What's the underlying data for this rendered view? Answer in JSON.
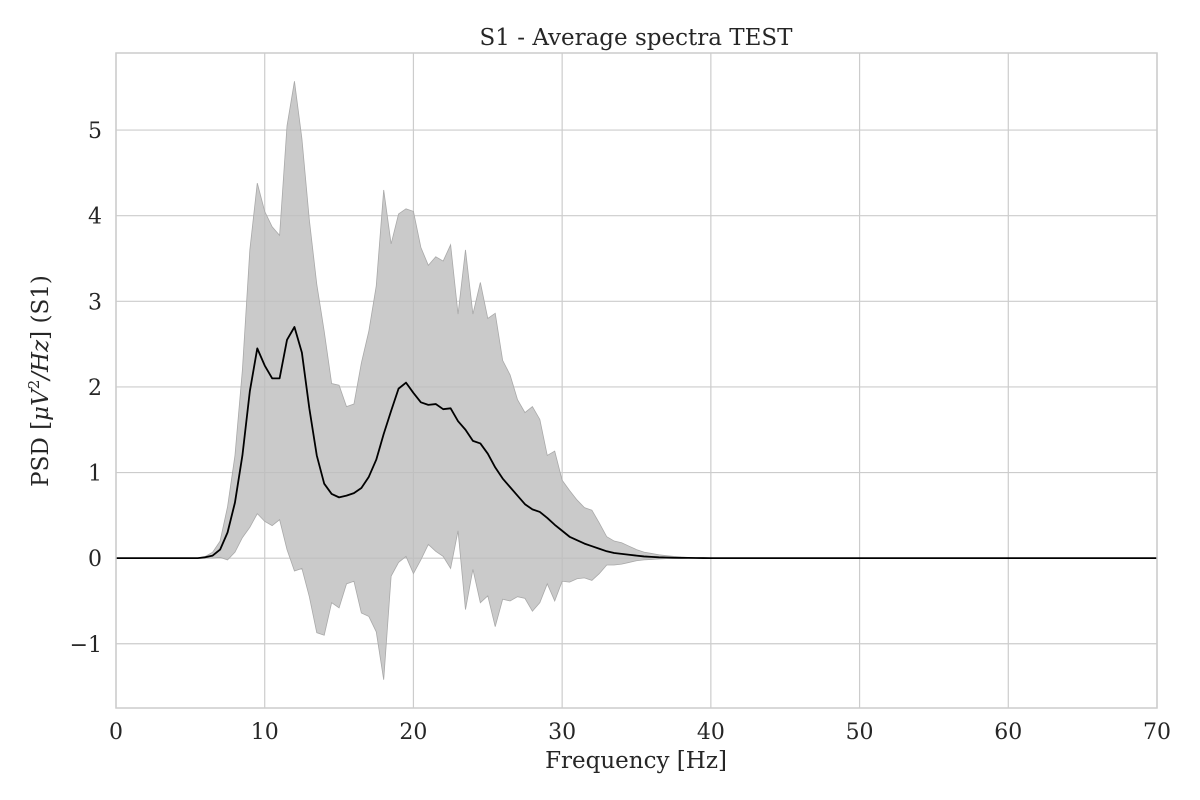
{
  "chart_data": {
    "type": "area",
    "title": "S1 - Average spectra TEST",
    "xlabel": "Frequency [Hz]",
    "ylabel": "PSD [μV²/Hz] (S1)",
    "ylabel_parts": {
      "prefix": "PSD [",
      "mu_v": "μV",
      "sup": "2",
      "hz": "/Hz",
      "suffix": "] (S1)"
    },
    "xlim": [
      0,
      70
    ],
    "ylim": [
      -1.75,
      5.9
    ],
    "xticks": [
      0,
      10,
      20,
      30,
      40,
      50,
      60,
      70
    ],
    "xtick_labels": [
      "0",
      "10",
      "20",
      "30",
      "40",
      "50",
      "60",
      "70"
    ],
    "yticks": [
      -1,
      0,
      1,
      2,
      3,
      4,
      5
    ],
    "ytick_labels": [
      "−1",
      "0",
      "1",
      "2",
      "3",
      "4",
      "5"
    ],
    "grid": true,
    "colors": {
      "mean_line": "#000000",
      "band_fill": "#bdbdbd",
      "band_edge": "#a9a9a9",
      "grid": "#cccccc",
      "frame": "#cccccc"
    },
    "x": [
      0,
      0.5,
      1,
      1.5,
      2,
      2.5,
      3,
      3.5,
      4,
      4.5,
      5,
      5.5,
      6,
      6.5,
      7,
      7.5,
      8,
      8.5,
      9,
      9.5,
      10,
      10.5,
      11,
      11.5,
      12,
      12.5,
      13,
      13.5,
      14,
      14.5,
      15,
      15.5,
      16,
      16.5,
      17,
      17.5,
      18,
      18.5,
      19,
      19.5,
      20,
      20.5,
      21,
      21.5,
      22,
      22.5,
      23,
      23.5,
      24,
      24.5,
      25,
      25.5,
      26,
      26.5,
      27,
      27.5,
      28,
      28.5,
      29,
      29.5,
      30,
      30.5,
      31,
      31.5,
      32,
      32.5,
      33,
      33.5,
      34,
      34.5,
      35,
      35.5,
      36,
      36.5,
      37,
      37.5,
      38,
      38.5,
      39,
      39.5,
      40,
      45,
      50,
      55,
      60,
      65,
      70
    ],
    "mean": [
      0,
      0,
      0,
      0,
      0,
      0,
      0,
      0,
      0,
      0,
      0,
      0,
      0.01,
      0.03,
      0.1,
      0.3,
      0.65,
      1.2,
      1.95,
      2.45,
      2.25,
      2.1,
      2.1,
      2.55,
      2.7,
      2.4,
      1.75,
      1.2,
      0.87,
      0.75,
      0.71,
      0.73,
      0.76,
      0.82,
      0.95,
      1.15,
      1.45,
      1.72,
      1.98,
      2.05,
      1.93,
      1.82,
      1.79,
      1.8,
      1.74,
      1.75,
      1.6,
      1.5,
      1.37,
      1.34,
      1.22,
      1.06,
      0.93,
      0.83,
      0.73,
      0.63,
      0.57,
      0.54,
      0.47,
      0.39,
      0.32,
      0.25,
      0.21,
      0.17,
      0.14,
      0.11,
      0.08,
      0.06,
      0.05,
      0.04,
      0.03,
      0.02,
      0.015,
      0.01,
      0.008,
      0.005,
      0.004,
      0.003,
      0.002,
      0.001,
      0,
      0,
      0,
      0,
      0,
      0,
      0
    ],
    "upper": [
      0,
      0,
      0,
      0,
      0,
      0,
      0,
      0,
      0,
      0,
      0,
      0,
      0.02,
      0.07,
      0.2,
      0.6,
      1.2,
      2.2,
      3.6,
      4.38,
      4.05,
      3.87,
      3.77,
      5.05,
      5.57,
      4.9,
      3.95,
      3.2,
      2.65,
      2.04,
      2.02,
      1.77,
      1.8,
      2.28,
      2.65,
      3.18,
      4.3,
      3.67,
      4.02,
      4.08,
      4.05,
      3.63,
      3.42,
      3.52,
      3.47,
      3.66,
      2.85,
      3.6,
      2.85,
      3.22,
      2.8,
      2.86,
      2.31,
      2.14,
      1.85,
      1.7,
      1.77,
      1.62,
      1.2,
      1.25,
      0.91,
      0.79,
      0.68,
      0.59,
      0.56,
      0.41,
      0.25,
      0.2,
      0.18,
      0.14,
      0.1,
      0.07,
      0.055,
      0.04,
      0.03,
      0.02,
      0.012,
      0.008,
      0.005,
      0.003,
      0.001,
      0,
      0,
      0,
      0,
      0,
      0
    ],
    "lower": [
      0,
      0,
      0,
      0,
      0,
      0,
      0,
      0,
      0,
      0,
      0,
      0,
      0,
      0,
      0.01,
      -0.02,
      0.07,
      0.24,
      0.36,
      0.52,
      0.43,
      0.38,
      0.45,
      0.1,
      -0.15,
      -0.12,
      -0.45,
      -0.87,
      -0.9,
      -0.52,
      -0.58,
      -0.3,
      -0.27,
      -0.64,
      -0.68,
      -0.86,
      -1.42,
      -0.21,
      -0.05,
      0.02,
      -0.18,
      -0.02,
      0.16,
      0.08,
      0.02,
      -0.12,
      0.32,
      -0.6,
      -0.13,
      -0.52,
      -0.44,
      -0.8,
      -0.48,
      -0.5,
      -0.45,
      -0.47,
      -0.62,
      -0.52,
      -0.3,
      -0.5,
      -0.27,
      -0.28,
      -0.24,
      -0.23,
      -0.26,
      -0.18,
      -0.08,
      -0.08,
      -0.07,
      -0.05,
      -0.03,
      -0.02,
      -0.015,
      -0.01,
      -0.005,
      -0.003,
      -0.002,
      -0.001,
      0,
      0,
      0,
      0,
      0,
      0,
      0,
      0,
      0
    ]
  }
}
